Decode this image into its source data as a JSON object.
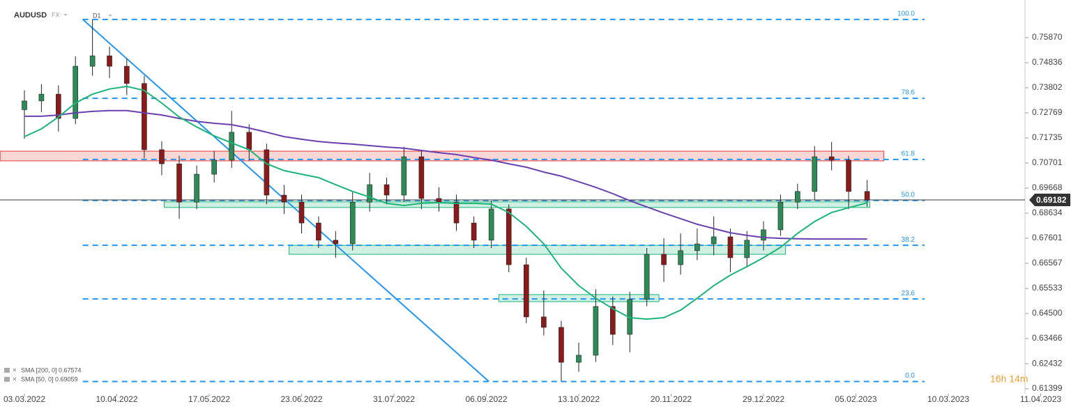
{
  "chart_data": {
    "type": "candlestick",
    "symbol": "AUDUSD",
    "market": "FX",
    "timeframe": "D1",
    "countdown": "16h 14m",
    "x": [
      "03.03.2022",
      "10.03.2022",
      "17.03.2022",
      "24.03.2022",
      "31.03.2022",
      "07.04.2022",
      "14.04.2022",
      "21.04.2022",
      "28.04.2022",
      "05.05.2022",
      "12.05.2022",
      "19.05.2022",
      "26.05.2022",
      "02.06.2022",
      "09.06.2022",
      "16.06.2022",
      "23.06.2022",
      "30.06.2022",
      "07.07.2022",
      "14.07.2022",
      "21.07.2022",
      "28.07.2022",
      "04.08.2022",
      "11.08.2022",
      "18.08.2022",
      "25.08.2022",
      "01.09.2022",
      "08.09.2022",
      "15.09.2022",
      "22.09.2022",
      "29.09.2022",
      "06.10.2022",
      "13.10.2022",
      "20.10.2022",
      "27.10.2022",
      "03.11.2022",
      "10.11.2022",
      "17.11.2022",
      "24.11.2022",
      "01.12.2022",
      "08.12.2022",
      "15.12.2022",
      "22.12.2022",
      "29.12.2022",
      "05.01.2023",
      "12.01.2023",
      "19.01.2023",
      "26.01.2023",
      "02.02.2023",
      "09.02.2023"
    ],
    "open": [
      0.729,
      0.7326,
      0.7354,
      0.7254,
      0.7469,
      0.7512,
      0.7469,
      0.7398,
      0.7125,
      0.7067,
      0.6909,
      0.7024,
      0.7082,
      0.7197,
      0.7125,
      0.6938,
      0.6909,
      0.6823,
      0.6752,
      0.6737,
      0.6909,
      0.6981,
      0.6938,
      0.7096,
      0.6924,
      0.6909,
      0.6823,
      0.6752,
      0.6881,
      0.6651,
      0.6436,
      0.6393,
      0.6249,
      0.6278,
      0.6479,
      0.6364,
      0.6508,
      0.6694,
      0.6651,
      0.6709,
      0.6737,
      0.6766,
      0.668,
      0.6752,
      0.6795,
      0.6909,
      0.6953,
      0.7096,
      0.7082,
      0.6953
    ],
    "high": [
      0.737,
      0.7395,
      0.739,
      0.751,
      0.7662,
      0.755,
      0.75,
      0.743,
      0.716,
      0.71,
      0.706,
      0.712,
      0.7285,
      0.723,
      0.715,
      0.698,
      0.694,
      0.685,
      0.679,
      0.695,
      0.703,
      0.701,
      0.7137,
      0.712,
      0.697,
      0.694,
      0.685,
      0.6915,
      0.69,
      0.668,
      0.6545,
      0.642,
      0.633,
      0.655,
      0.652,
      0.654,
      0.672,
      0.676,
      0.678,
      0.68,
      0.685,
      0.68,
      0.679,
      0.683,
      0.694,
      0.6985,
      0.714,
      0.7157,
      0.71,
      0.7
    ],
    "low": [
      0.717,
      0.728,
      0.72,
      0.723,
      0.743,
      0.742,
      0.735,
      0.709,
      0.702,
      0.684,
      0.688,
      0.699,
      0.705,
      0.708,
      0.69,
      0.686,
      0.678,
      0.672,
      0.668,
      0.671,
      0.687,
      0.69,
      0.691,
      0.688,
      0.687,
      0.679,
      0.672,
      0.672,
      0.662,
      0.641,
      0.636,
      0.617,
      0.621,
      0.625,
      0.632,
      0.629,
      0.648,
      0.658,
      0.661,
      0.667,
      0.669,
      0.662,
      0.664,
      0.671,
      0.677,
      0.688,
      0.692,
      0.704,
      0.688,
      0.689
    ],
    "close": [
      0.7326,
      0.7354,
      0.7254,
      0.7469,
      0.7512,
      0.7469,
      0.7398,
      0.7125,
      0.7067,
      0.6909,
      0.7024,
      0.7082,
      0.7197,
      0.7125,
      0.6938,
      0.6909,
      0.6823,
      0.6752,
      0.6737,
      0.6909,
      0.6981,
      0.6938,
      0.7096,
      0.6924,
      0.6909,
      0.6823,
      0.6752,
      0.6881,
      0.6651,
      0.6436,
      0.6393,
      0.6249,
      0.6278,
      0.6479,
      0.6364,
      0.6508,
      0.6694,
      0.6651,
      0.6709,
      0.6737,
      0.6766,
      0.668,
      0.6752,
      0.6795,
      0.6909,
      0.6953,
      0.7096,
      0.7082,
      0.6953,
      0.6918
    ],
    "series": [
      {
        "name": "SMA [200, 0] 0.67574",
        "color": "#6a3fb0",
        "values": [
          0.7263,
          0.7263,
          0.7268,
          0.7277,
          0.7283,
          0.7286,
          0.7286,
          0.7277,
          0.7268,
          0.7254,
          0.7242,
          0.7234,
          0.7228,
          0.7214,
          0.7197,
          0.7179,
          0.7168,
          0.7159,
          0.7153,
          0.7148,
          0.7142,
          0.7136,
          0.7131,
          0.7122,
          0.7113,
          0.7105,
          0.7093,
          0.7082,
          0.7067,
          0.7053,
          0.7033,
          0.7016,
          0.6993,
          0.697,
          0.6944,
          0.6915,
          0.6889,
          0.6864,
          0.6841,
          0.6818,
          0.68,
          0.6783,
          0.6772,
          0.6763,
          0.676,
          0.6758,
          0.6757,
          0.6757,
          0.6757,
          0.6757
        ]
      },
      {
        "name": "SMA [50, 0] 0.69059",
        "color": "#1bb57a",
        "values": [
          0.7179,
          0.7211,
          0.726,
          0.7317,
          0.7354,
          0.7375,
          0.7386,
          0.7369,
          0.7317,
          0.726,
          0.7219,
          0.7182,
          0.7153,
          0.7125,
          0.7067,
          0.7039,
          0.7024,
          0.701,
          0.6981,
          0.6953,
          0.693,
          0.6904,
          0.6895,
          0.6904,
          0.6907,
          0.6904,
          0.6904,
          0.6901,
          0.6866,
          0.6809,
          0.6737,
          0.6637,
          0.6565,
          0.6513,
          0.647,
          0.6433,
          0.6427,
          0.6433,
          0.6464,
          0.6513,
          0.6565,
          0.6608,
          0.6643,
          0.668,
          0.6723,
          0.678,
          0.6829,
          0.6866,
          0.6886,
          0.6906
        ]
      }
    ],
    "ylim": [
      0.612,
      0.7742
    ],
    "yticks": [
      {
        "value": 0.7587,
        "label": "0.75870"
      },
      {
        "value": 0.74836,
        "label": "0.74836"
      },
      {
        "value": 0.73802,
        "label": "0.73802"
      },
      {
        "value": 0.72769,
        "label": "0.72769"
      },
      {
        "value": 0.71735,
        "label": "0.71735"
      },
      {
        "value": 0.70701,
        "label": "0.70701"
      },
      {
        "value": 0.69668,
        "label": "0.69668"
      },
      {
        "value": 0.68634,
        "label": "0.68634"
      },
      {
        "value": 0.67601,
        "label": "0.67601"
      },
      {
        "value": 0.66567,
        "label": "0.66567"
      },
      {
        "value": 0.65533,
        "label": "0.65533"
      },
      {
        "value": 0.645,
        "label": "0.64500"
      },
      {
        "value": 0.63466,
        "label": "0.63466"
      },
      {
        "value": 0.62432,
        "label": "0.62432"
      },
      {
        "value": 0.61399,
        "label": "0.61399"
      }
    ],
    "xticks": [
      "03.03.2022",
      "10.04.2022",
      "17.05.2022",
      "23.06.2022",
      "31.07.2022",
      "06.09.2022",
      "13.10.2022",
      "20.11.2022",
      "29.12.2022",
      "05.02.2023",
      "10.03.2023",
      "11.04.2023"
    ],
    "fib_levels": [
      {
        "label": "100.0",
        "value": 0.7662
      },
      {
        "label": "78.6",
        "value": 0.7337
      },
      {
        "label": "61.8",
        "value": 0.7085
      },
      {
        "label": "50.0",
        "value": 0.6916
      },
      {
        "label": "38.2",
        "value": 0.6731
      },
      {
        "label": "23.6",
        "value": 0.651
      },
      {
        "label": "0.0",
        "value": 0.617
      }
    ],
    "zones": [
      {
        "from": "21.02.2022",
        "to": "15.02.2023",
        "low": 0.7079,
        "high": 0.7119,
        "color": "#e53935"
      },
      {
        "from": "29.04.2022",
        "to": "10.02.2023",
        "low": 0.6887,
        "high": 0.691,
        "color": "#1bb57a"
      },
      {
        "from": "18.06.2022",
        "to": "07.01.2023",
        "low": 0.6694,
        "high": 0.6731,
        "color": "#1bb57a"
      },
      {
        "from": "11.09.2022",
        "to": "15.11.2022",
        "low": 0.6499,
        "high": 0.6528,
        "color": "#1bb57a"
      }
    ],
    "trendline": {
      "x": [
        "27.03.2022",
        "07.09.2022"
      ],
      "values": [
        0.7662,
        0.617
      ]
    },
    "last_price": 0.69182
  }
}
